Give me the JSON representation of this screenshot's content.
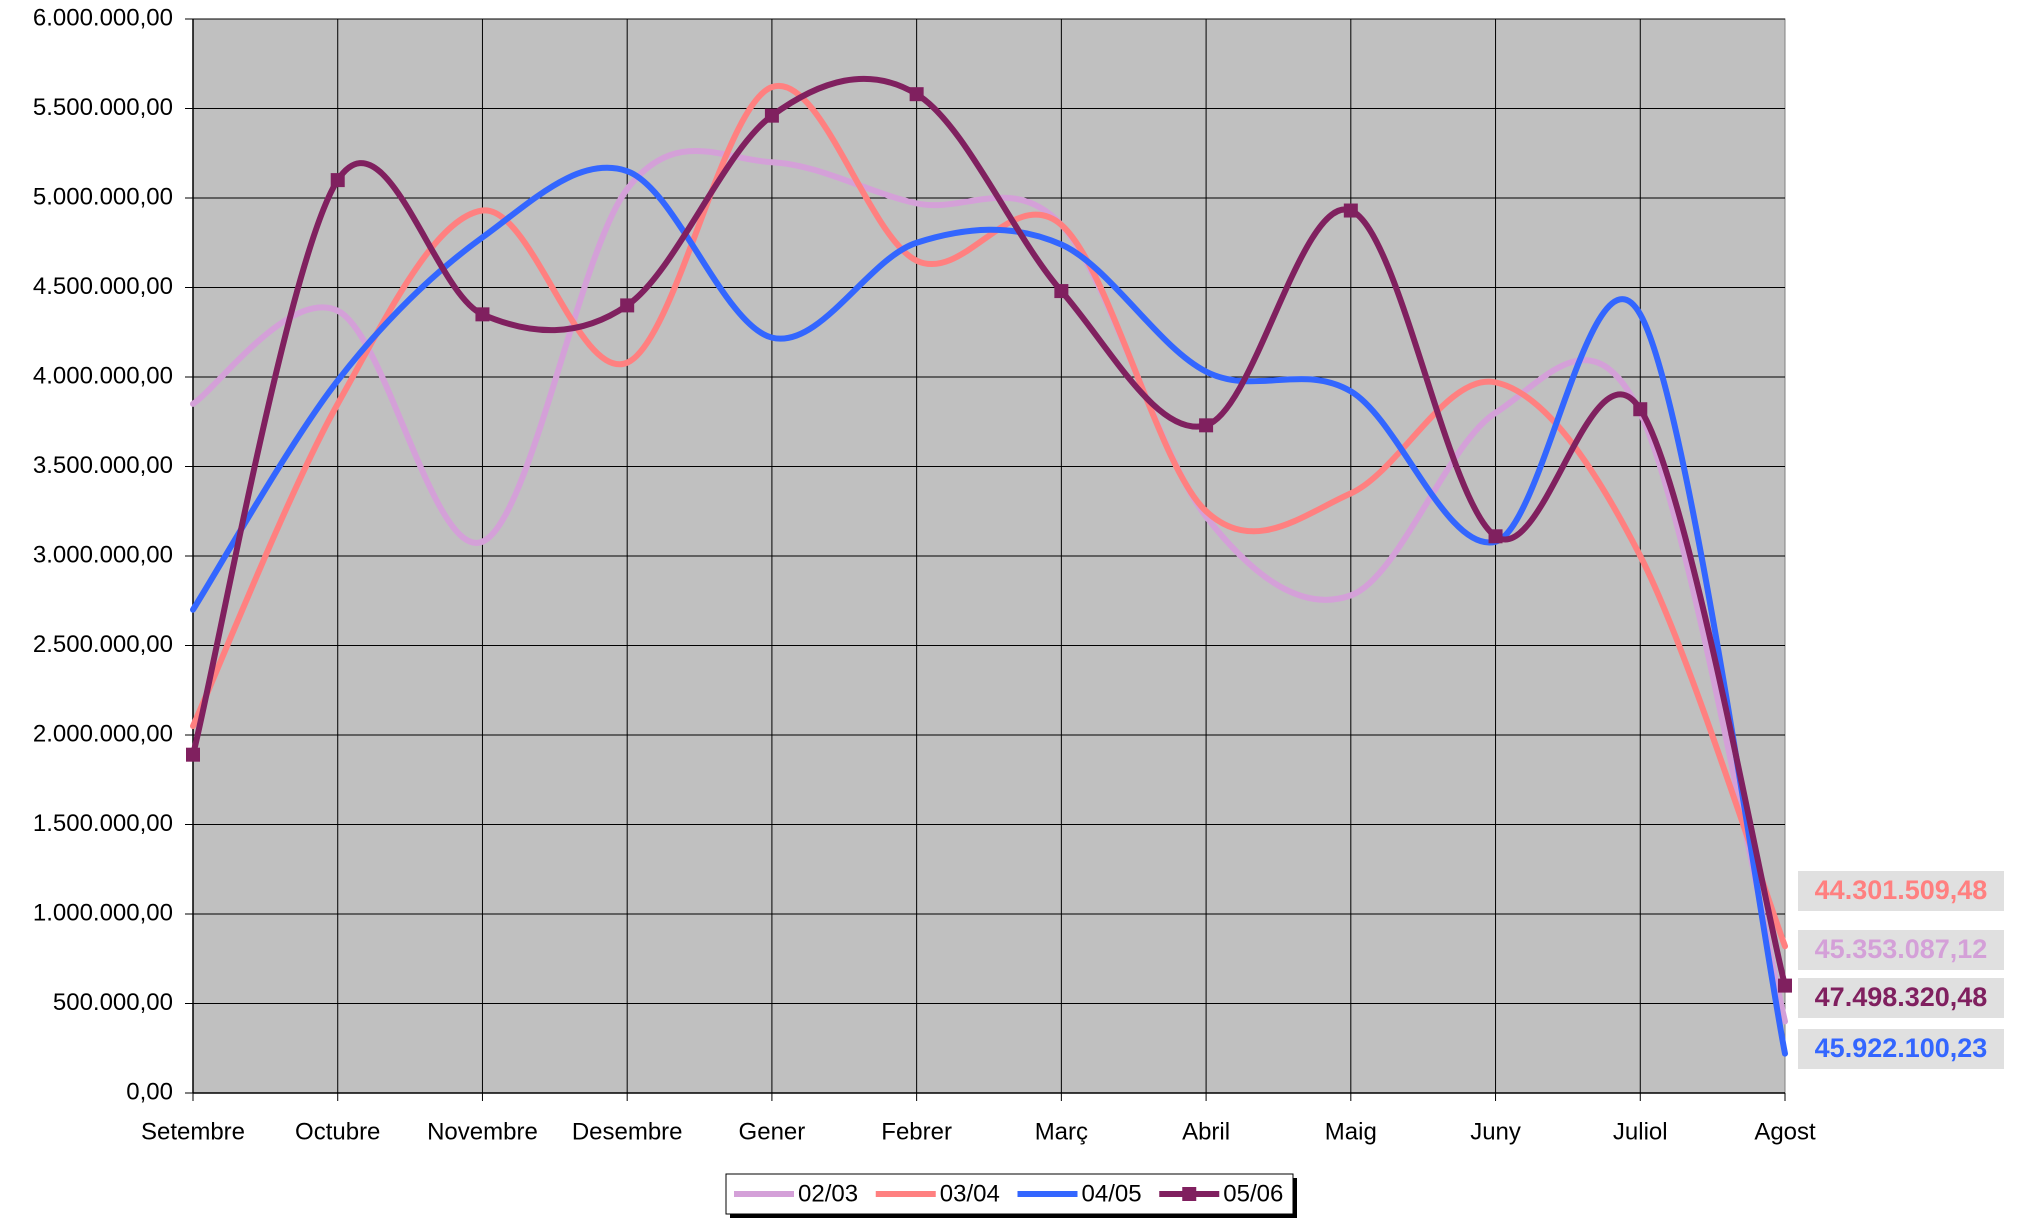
{
  "chart_data": {
    "type": "line",
    "categories": [
      "Setembre",
      "Octubre",
      "Novembre",
      "Desembre",
      "Gener",
      "Febrer",
      "Març",
      "Abril",
      "Maig",
      "Juny",
      "Juliol",
      "Agost"
    ],
    "series": [
      {
        "name": "02/03",
        "color": "#d4a0d8",
        "values": [
          3850000,
          4370000,
          3080000,
          5050000,
          5200000,
          4970000,
          4850000,
          3220000,
          2780000,
          3800000,
          3800000,
          400000
        ]
      },
      {
        "name": "03/04",
        "color": "#ff8080",
        "values": [
          2050000,
          3850000,
          4930000,
          4080000,
          5620000,
          4650000,
          4850000,
          3250000,
          3350000,
          3970000,
          3000000,
          820000
        ]
      },
      {
        "name": "04/05",
        "color": "#3366ff",
        "values": [
          2700000,
          3980000,
          4780000,
          5150000,
          4220000,
          4750000,
          4740000,
          4030000,
          3920000,
          3080000,
          4350000,
          220000
        ]
      },
      {
        "name": "05/06",
        "color": "#80205f",
        "markers": true,
        "values": [
          1890000,
          5100000,
          4350000,
          4400000,
          5460000,
          5580000,
          4480000,
          3730000,
          4930000,
          3110000,
          3820000,
          600000
        ]
      }
    ],
    "ylim": [
      0,
      6000000
    ],
    "yticks": [
      {
        "value": 0,
        "label": "0,00"
      },
      {
        "value": 500000,
        "label": "500.000,00"
      },
      {
        "value": 1000000,
        "label": "1.000.000,00"
      },
      {
        "value": 1500000,
        "label": "1.500.000,00"
      },
      {
        "value": 2000000,
        "label": "2.000.000,00"
      },
      {
        "value": 2500000,
        "label": "2.500.000,00"
      },
      {
        "value": 3000000,
        "label": "3.000.000,00"
      },
      {
        "value": 3500000,
        "label": "3.500.000,00"
      },
      {
        "value": 4000000,
        "label": "4.000.000,00"
      },
      {
        "value": 4500000,
        "label": "4.500.000,00"
      },
      {
        "value": 5000000,
        "label": "5.000.000,00"
      },
      {
        "value": 5500000,
        "label": "5.500.000,00"
      },
      {
        "value": 6000000,
        "label": "6.000.000,00"
      }
    ],
    "grid": true,
    "plot_background": "#c0c0c0",
    "legend": "bottom",
    "annotations": [
      {
        "text": "44.301.509,48",
        "color": "#ff8080"
      },
      {
        "text": "45.353.087,12",
        "color": "#d4a0d8"
      },
      {
        "text": "47.498.320,48",
        "color": "#80205f"
      },
      {
        "text": "45.922.100,23",
        "color": "#3366ff"
      }
    ]
  }
}
